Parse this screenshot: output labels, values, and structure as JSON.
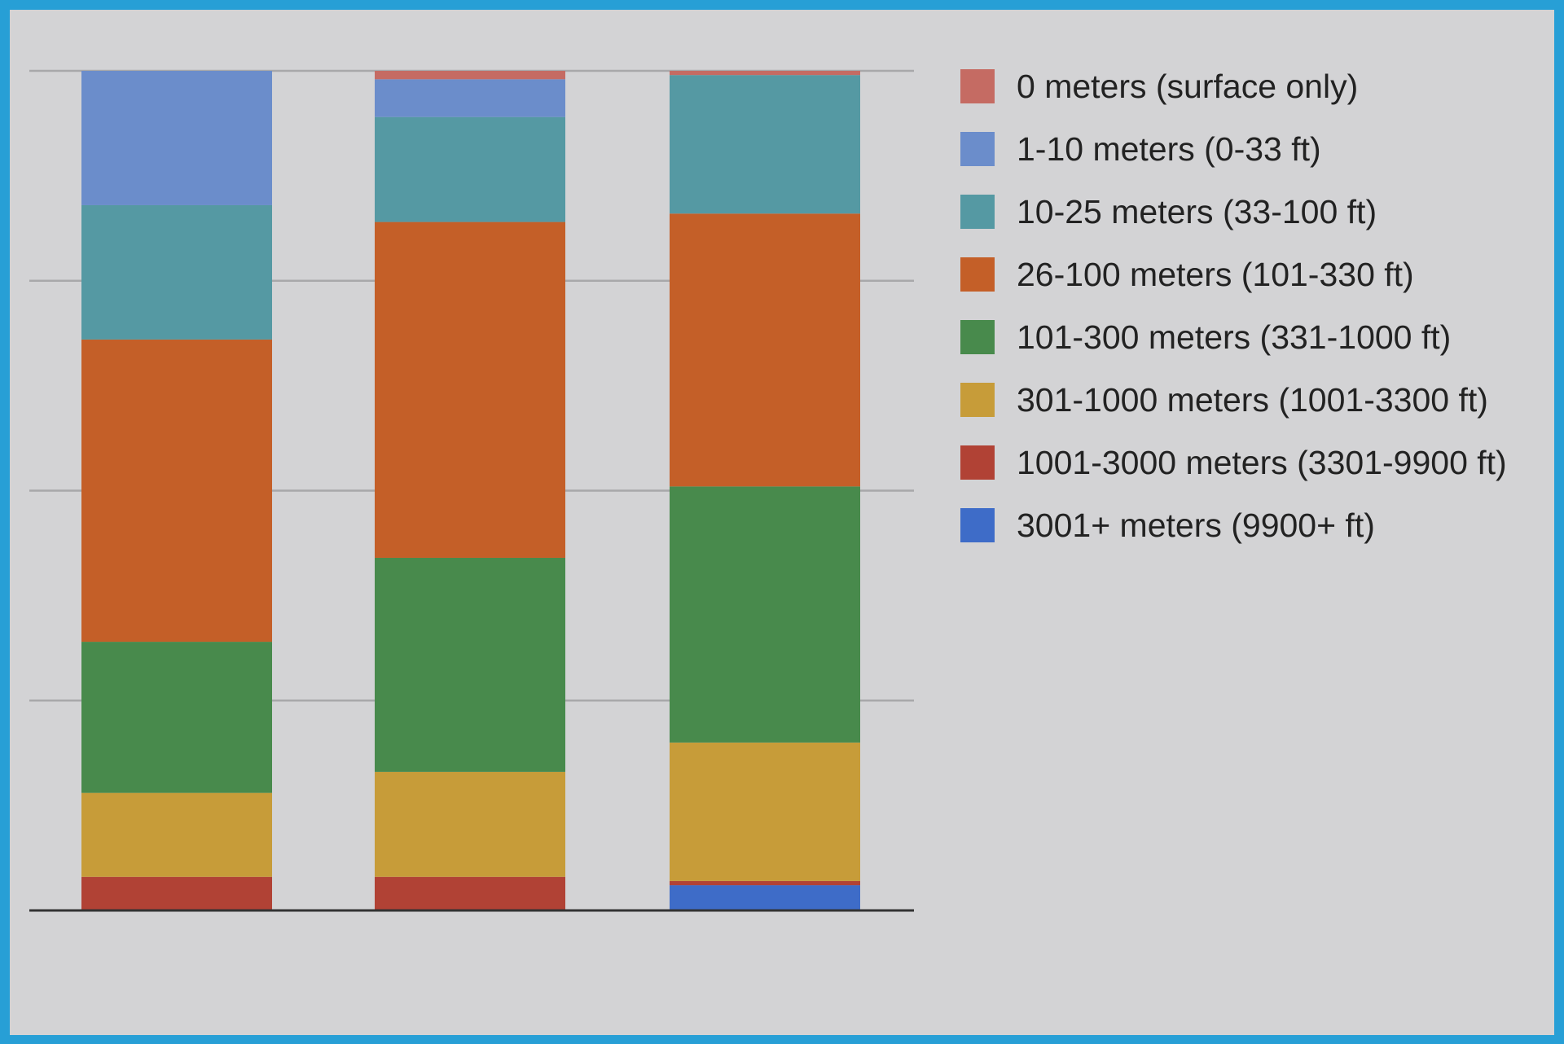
{
  "chart_data": {
    "type": "bar",
    "stacked": true,
    "normalized": true,
    "ylim": [
      0,
      100
    ],
    "grid": true,
    "legend_position": "right",
    "xlabel": "",
    "ylabel": "",
    "categories": [
      "",
      "",
      ""
    ],
    "series": [
      {
        "name": "0 meters (surface only)",
        "color": "#c56b63",
        "values": [
          0,
          1,
          0.5
        ]
      },
      {
        "name": "1-10 meters (0-33 ft)",
        "color": "#6b8dcb",
        "values": [
          16,
          4.5,
          0
        ]
      },
      {
        "name": "10-25 meters (33-100 ft)",
        "color": "#5599a3",
        "values": [
          16,
          12.5,
          16.5
        ]
      },
      {
        "name": "26-100 meters (101-330 ft)",
        "color": "#c45f28",
        "values": [
          36,
          40,
          32.5
        ]
      },
      {
        "name": "101-300 meters (331-1000 ft)",
        "color": "#488a4c",
        "values": [
          18,
          25.5,
          30.5
        ]
      },
      {
        "name": "301-1000 meters (1001-3300 ft)",
        "color": "#c79c39",
        "values": [
          10,
          12.5,
          16.5
        ]
      },
      {
        "name": "1001-3000 meters (3301-9900 ft)",
        "color": "#b14235",
        "values": [
          4,
          4,
          0.5
        ]
      },
      {
        "name": "3001+ meters (9900+ ft)",
        "color": "#3e6cc8",
        "values": [
          0,
          0,
          3
        ]
      }
    ]
  }
}
